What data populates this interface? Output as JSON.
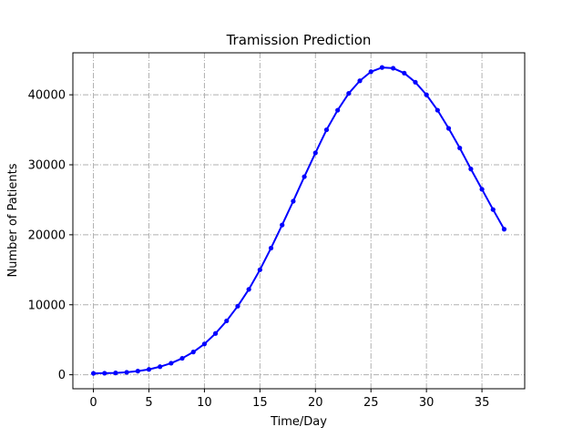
{
  "chart_data": {
    "type": "line",
    "title": "Tramission Prediction",
    "xlabel": "Time/Day",
    "ylabel": "Number of Patients",
    "xlim": [
      -1.85,
      38.85
    ],
    "ylim": [
      -2000,
      46000
    ],
    "xticks": [
      0,
      5,
      10,
      15,
      20,
      25,
      30,
      35
    ],
    "yticks": [
      0,
      10000,
      20000,
      30000,
      40000
    ],
    "grid": true,
    "line_color": "#0000ff",
    "series": [
      {
        "x": [
          0,
          1,
          2,
          3,
          4,
          5,
          6,
          7,
          8,
          9,
          10,
          11,
          12,
          13,
          14,
          15,
          16,
          17,
          18,
          19,
          20,
          21,
          22,
          23,
          24,
          25,
          26,
          27,
          28,
          29,
          30,
          31,
          32,
          33,
          34,
          35,
          36,
          37
        ],
        "values": [
          200,
          220,
          260,
          350,
          520,
          760,
          1150,
          1650,
          2350,
          3250,
          4400,
          5900,
          7700,
          9800,
          12200,
          15000,
          18100,
          21400,
          24800,
          28300,
          31700,
          35000,
          37800,
          40200,
          42000,
          43300,
          43900,
          43800,
          43100,
          41800,
          40000,
          37800,
          35200,
          32400,
          29400,
          26500,
          23600,
          20800
        ]
      }
    ]
  }
}
